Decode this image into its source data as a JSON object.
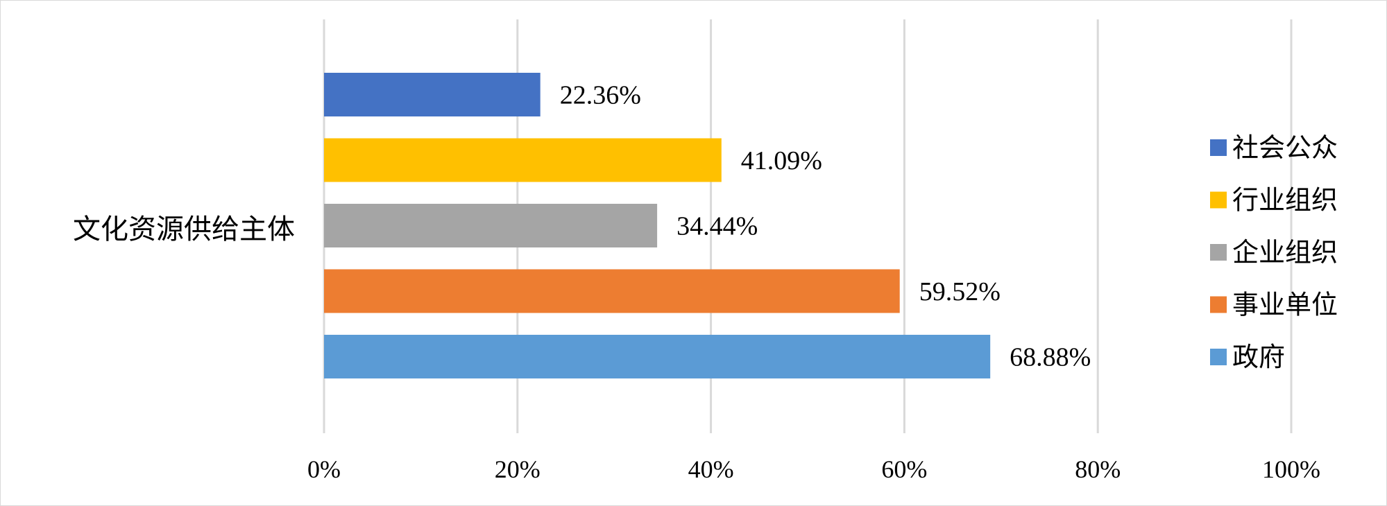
{
  "chart_data": {
    "type": "bar",
    "orientation": "horizontal",
    "categories": [
      "文化资源供给主体"
    ],
    "series": [
      {
        "name": "社会公众",
        "values": [
          22.36
        ],
        "label": "22.36%",
        "color": "#4472C4"
      },
      {
        "name": "行业组织",
        "values": [
          41.09
        ],
        "label": "41.09%",
        "color": "#FFC000"
      },
      {
        "name": "企业组织",
        "values": [
          34.44
        ],
        "label": "34.44%",
        "color": "#A5A5A5"
      },
      {
        "name": "事业单位",
        "values": [
          59.52
        ],
        "label": "59.52%",
        "color": "#ED7D31"
      },
      {
        "name": "政府",
        "values": [
          68.88
        ],
        "label": "68.88%",
        "color": "#5B9BD5"
      }
    ],
    "x_ticks": [
      "0%",
      "20%",
      "40%",
      "60%",
      "80%",
      "100%"
    ],
    "xlim": [
      0,
      100
    ],
    "grid": true,
    "legend": "right"
  }
}
